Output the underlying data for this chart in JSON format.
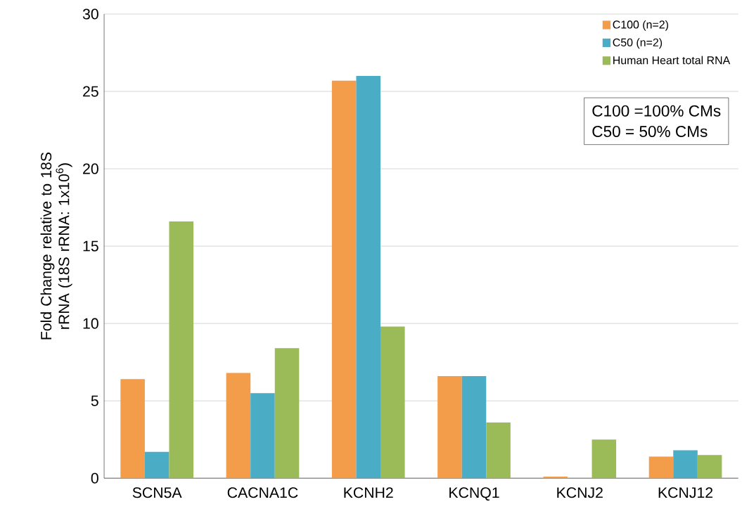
{
  "chart_data": {
    "type": "bar",
    "ylabel": "Fold Change relative to 18S rRNA (18S rRNA: 1x10$^{6}$)",
    "categories": [
      "SCN5A",
      "CACNA1C",
      "KCNH2",
      "KCNQ1",
      "KCNJ2",
      "KCNJ12"
    ],
    "series": [
      {
        "name": "C100 (n=2)",
        "color": "#f39c4a",
        "values": [
          6.4,
          6.8,
          25.7,
          6.6,
          0.1,
          1.4
        ]
      },
      {
        "name": "C50 (n=2)",
        "color": "#4bacc6",
        "values": [
          1.7,
          5.5,
          26.0,
          6.6,
          0,
          1.8
        ]
      },
      {
        "name": "Human Heart total RNA",
        "color": "#9bbb59",
        "values": [
          16.6,
          8.4,
          9.8,
          3.6,
          2.5,
          1.5
        ]
      }
    ],
    "ylim": [
      0,
      30
    ],
    "yticks": [
      0,
      5,
      10,
      15,
      20,
      25,
      30
    ],
    "grid": "y",
    "legend": "top right",
    "annotations": [
      "C100 =100% CMs",
      "C50   =  50% CMs"
    ]
  }
}
